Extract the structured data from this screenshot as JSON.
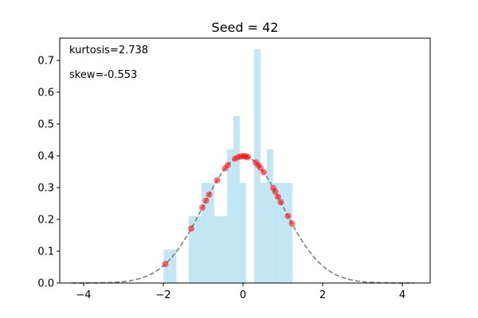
{
  "chart_data": {
    "type": "histogram",
    "title": "Seed = 42",
    "xlabel": "",
    "ylabel": "",
    "xlim": [
      -4.6,
      4.7
    ],
    "ylim": [
      0,
      0.77
    ],
    "x_ticks": [
      -4,
      -2,
      0,
      2,
      4
    ],
    "y_ticks": [
      0.0,
      0.1,
      0.2,
      0.3,
      0.4,
      0.5,
      0.6,
      0.7
    ],
    "annotations": [
      "kurtosis=2.738",
      "skew=-0.553"
    ],
    "histogram": {
      "color": "#87ceeb",
      "bin_width": 0.159,
      "bins": [
        {
          "x0": -1.99,
          "height": 0.105
        },
        {
          "x0": -1.83,
          "height": 0.105
        },
        {
          "x0": -1.36,
          "height": 0.21
        },
        {
          "x0": -1.2,
          "height": 0.21
        },
        {
          "x0": -1.04,
          "height": 0.315
        },
        {
          "x0": -0.88,
          "height": 0.315
        },
        {
          "x0": -0.72,
          "height": 0.21
        },
        {
          "x0": -0.56,
          "height": 0.21
        },
        {
          "x0": -0.4,
          "height": 0.42
        },
        {
          "x0": -0.24,
          "height": 0.525
        },
        {
          "x0": -0.08,
          "height": 0.315
        },
        {
          "x0": 0.28,
          "height": 0.735
        },
        {
          "x0": 0.44,
          "height": 0.315
        },
        {
          "x0": 0.6,
          "height": 0.42
        },
        {
          "x0": 0.76,
          "height": 0.315
        },
        {
          "x0": 0.92,
          "height": 0.315
        },
        {
          "x0": 1.08,
          "height": 0.315
        }
      ]
    },
    "curve": {
      "type": "normal_pdf",
      "mean": 0,
      "std": 1,
      "x_range": [
        -4.3,
        4.3
      ],
      "color": "#808080",
      "style": "dashed"
    },
    "points": {
      "color": "#ff0000",
      "x": [
        -1.95,
        -1.3,
        -1.02,
        -0.93,
        -0.85,
        -0.65,
        -0.45,
        -0.38,
        -0.2,
        -0.12,
        -0.05,
        0.02,
        0.07,
        0.12,
        0.32,
        0.38,
        0.44,
        0.52,
        0.76,
        0.81,
        0.88,
        0.95,
        1.13,
        1.23
      ]
    }
  }
}
